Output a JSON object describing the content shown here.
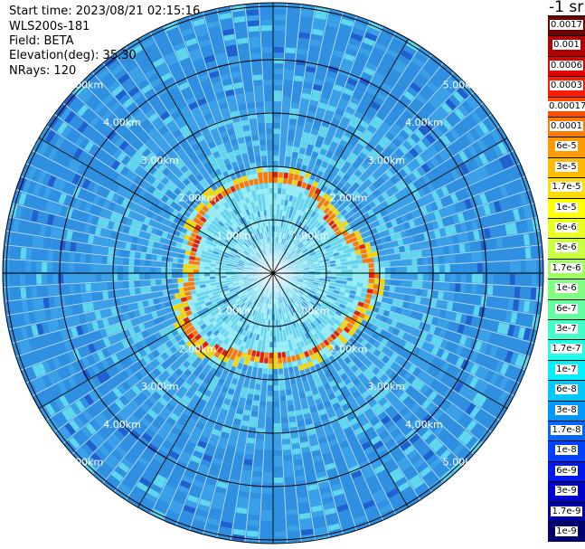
{
  "header": {
    "start_time": "Start time: 2023/08/21 02:15:16",
    "instrument": "WLS200s-181",
    "field": "Field: BETA",
    "elevation": "Elevation(deg): 35.30",
    "nrays": "NRays: 120"
  },
  "unit_label": "-1 sr",
  "colorbar": {
    "labels": [
      "0.0017",
      "0.001",
      "0.0006",
      "0.0003",
      "0.00017",
      "0.0001",
      "6e-5",
      "3e-5",
      "1.7e-5",
      "1e-5",
      "6e-6",
      "3e-6",
      "1.7e-6",
      "1e-6",
      "6e-7",
      "3e-7",
      "1.7e-7",
      "1e-7",
      "6e-8",
      "3e-8",
      "1.7e-8",
      "1e-8",
      "6e-9",
      "3e-9",
      "1.7e-9",
      "1e-9"
    ],
    "colors": [
      "#6e0000",
      "#b00000",
      "#e00000",
      "#ff1a00",
      "#ff4a00",
      "#ff7a00",
      "#ff9a00",
      "#ffbb00",
      "#ffdd00",
      "#ffff00",
      "#e8ff20",
      "#c8ff40",
      "#a0ff60",
      "#80ff80",
      "#60ffa0",
      "#40ffc8",
      "#20ffe8",
      "#00f0ff",
      "#00c8ff",
      "#0098ff",
      "#0068ff",
      "#0040ff",
      "#0018ee",
      "#0000cc",
      "#0000a0",
      "#000070"
    ]
  },
  "rings": {
    "labels": [
      "1.00km",
      "2.00km",
      "3.00km",
      "4.00km",
      "5.00km"
    ]
  },
  "palette": {
    "far_blue": "#2f8fe0",
    "mid_blue": "#3aa0e8",
    "cyan": "#5fd8ee",
    "light_cyan": "#8ff0f5",
    "ring_orange": "#ff7a00",
    "ring_red": "#e82000",
    "ring_yellow": "#f5d800"
  }
}
